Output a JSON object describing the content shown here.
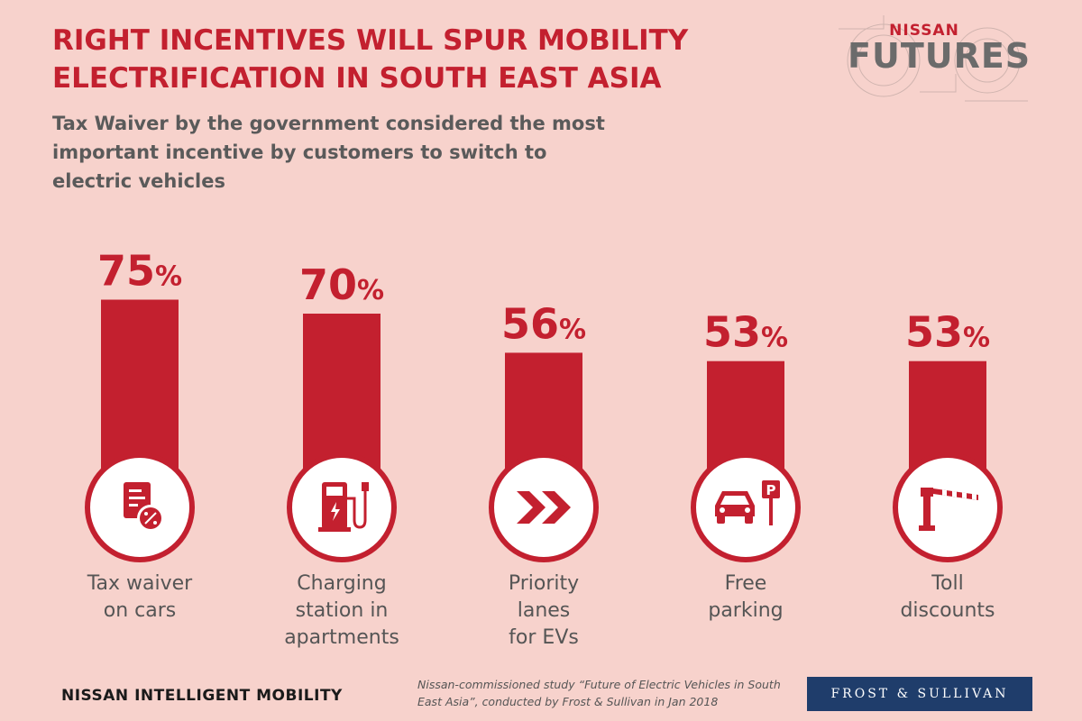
{
  "header": {
    "title": "RIGHT INCENTIVES WILL SPUR MOBILITY ELECTRIFICATION IN SOUTH EAST ASIA",
    "subtitle": "Tax Waiver by the government considered the most important incentive by customers to switch to electric vehicles"
  },
  "brand": {
    "top": "NISSAN",
    "main": "FUTURES"
  },
  "colors": {
    "accent": "#c3202f",
    "background": "#f7d2cc",
    "text": "#5a5a5a"
  },
  "chart_data": {
    "type": "bar",
    "categories": [
      "Tax waiver on cars",
      "Charging station in apartments",
      "Priority lanes for EVs",
      "Free parking",
      "Toll discounts"
    ],
    "category_lines": [
      [
        "Tax waiver",
        "on cars"
      ],
      [
        "Charging",
        "station in",
        "apartments"
      ],
      [
        "Priority",
        "lanes",
        "for EVs"
      ],
      [
        "Free",
        "parking"
      ],
      [
        "Toll",
        "discounts"
      ]
    ],
    "values": [
      75,
      70,
      56,
      53,
      53
    ],
    "unit": "%",
    "icons": [
      "document-percent-icon",
      "charging-station-icon",
      "chevrons-right-icon",
      "car-parking-icon",
      "toll-barrier-icon"
    ]
  },
  "footer": {
    "left_logo": "NISSAN INTELLIGENT MOBILITY",
    "note": "Nissan-commissioned study “Future of Electric Vehicles in South East Asia”, conducted by Frost & Sullivan in Jan 2018",
    "right_logo": "FROST & SULLIVAN"
  }
}
